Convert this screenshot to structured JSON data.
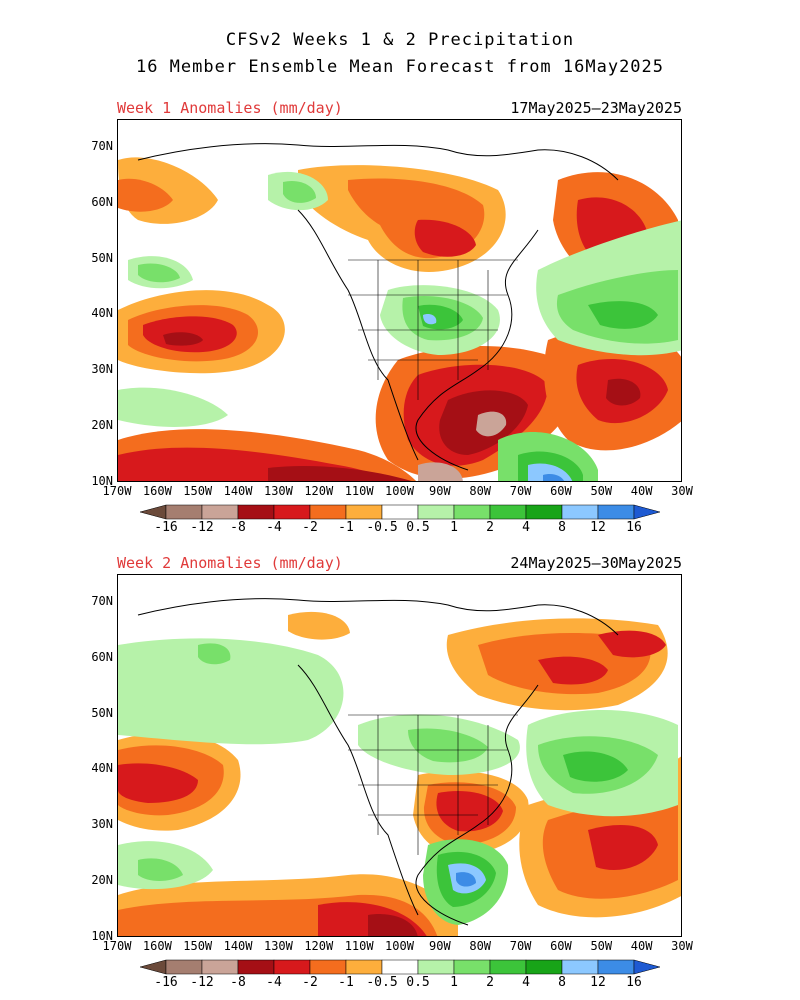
{
  "header": {
    "title_line1": "CFSv2 Weeks 1 & 2 Precipitation",
    "title_line2": "16 Member Ensemble Mean Forecast from 16May2025"
  },
  "panels": [
    {
      "label": "Week 1 Anomalies (mm/day)",
      "dates": "17May2025–23May2025"
    },
    {
      "label": "Week 2 Anomalies (mm/day)",
      "dates": "24May2025–30May2025"
    }
  ],
  "axes": {
    "lat_labels": [
      "70N",
      "60N",
      "50N",
      "40N",
      "30N",
      "20N",
      "10N"
    ],
    "lon_labels": [
      "170W",
      "160W",
      "150W",
      "140W",
      "130W",
      "120W",
      "110W",
      "100W",
      "90W",
      "80W",
      "70W",
      "60W",
      "50W",
      "40W",
      "30W"
    ]
  },
  "colorbar": {
    "labels": [
      "-16",
      "-12",
      "-8",
      "-4",
      "-2",
      "-1",
      "-0.5",
      "0.5",
      "1",
      "2",
      "4",
      "8",
      "12",
      "16"
    ],
    "colors": [
      "#6b4a3a",
      "#a57e70",
      "#caa498",
      "#a50f15",
      "#d7191c",
      "#f46d1e",
      "#fdae3c",
      "#ffffff",
      "#b6f2a9",
      "#78e06a",
      "#3cc43a",
      "#18a418",
      "#8cc8ff",
      "#3c8ce6",
      "#1e5ad2"
    ]
  },
  "palette": {
    "dry_strong": "#a50f15",
    "dry_mid": "#d7191c",
    "dry_low": "#f46d1e",
    "dry_weak": "#fdae3c",
    "wet_weak": "#b6f2a9",
    "wet_low": "#78e06a",
    "wet_mid": "#3cc43a",
    "wet_strong": "#18a418",
    "wet_vstrong": "#8cc8ff",
    "wet_max": "#3c8ce6",
    "very_dry": "#caa498"
  }
}
